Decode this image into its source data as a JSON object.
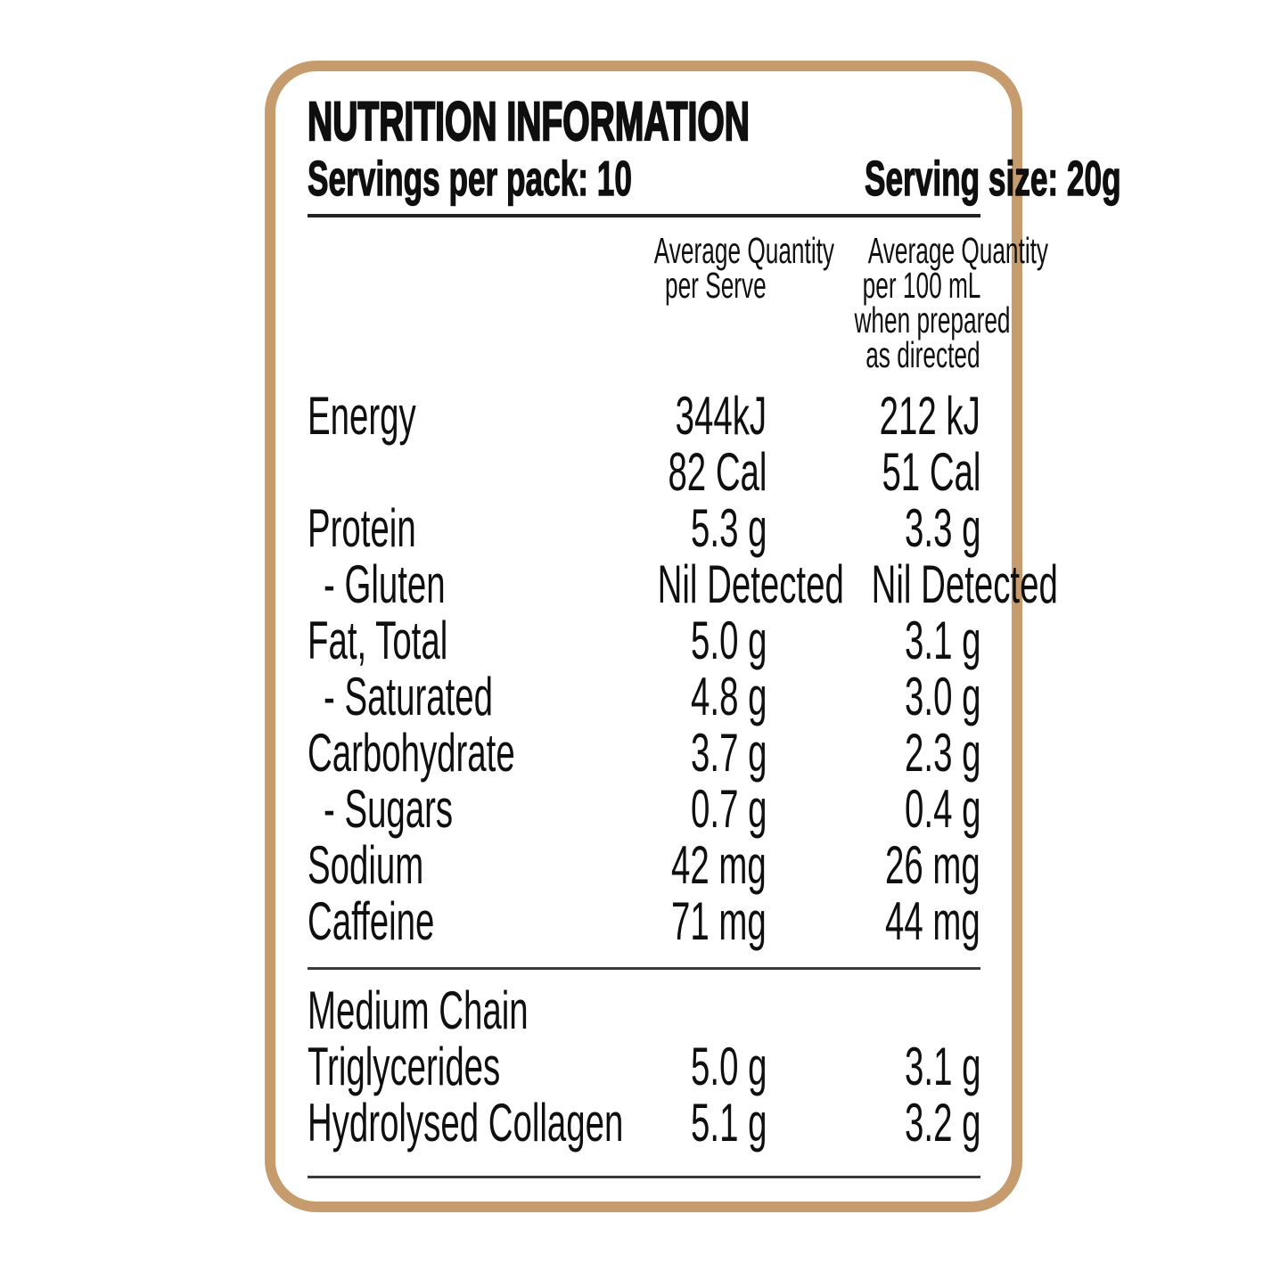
{
  "panel": {
    "title": "NUTRITION INFORMATION",
    "servings_per_pack": "Servings per pack: 10",
    "serving_size": "Serving size: 20g",
    "columns": {
      "per_serve_lines": [
        "Average Quantity",
        "per Serve"
      ],
      "per_100ml_lines": [
        "Average Quantity",
        "per 100 mL",
        "when prepared",
        "as directed"
      ]
    },
    "rows": [
      {
        "label": "Energy",
        "serve": "344kJ",
        "per100": "212 kJ",
        "indent": false
      },
      {
        "label": "",
        "serve": "82 Cal",
        "per100": "51 Cal",
        "indent": false
      },
      {
        "label": "Protein",
        "serve": "5.3 g",
        "per100": "3.3 g",
        "indent": false
      },
      {
        "label": "- Gluten",
        "serve": "Nil Detected",
        "per100": "Nil Detected",
        "indent": true
      },
      {
        "label": "Fat, Total",
        "serve": "5.0 g",
        "per100": "3.1 g",
        "indent": false
      },
      {
        "label": "- Saturated",
        "serve": "4.8 g",
        "per100": "3.0 g",
        "indent": true
      },
      {
        "label": "Carbohydrate",
        "serve": "3.7 g",
        "per100": "2.3 g",
        "indent": false
      },
      {
        "label": "- Sugars",
        "serve": "0.7 g",
        "per100": "0.4 g",
        "indent": true
      },
      {
        "label": "Sodium",
        "serve": "42 mg",
        "per100": "26 mg",
        "indent": false
      },
      {
        "label": "Caffeine",
        "serve": "71 mg",
        "per100": "44 mg",
        "indent": false
      }
    ],
    "supplement_rows": [
      {
        "label": "Medium Chain",
        "serve": "",
        "per100": "",
        "indent": false
      },
      {
        "label": "Triglycerides",
        "serve": "5.0 g",
        "per100": "3.1 g",
        "indent": false
      },
      {
        "label": "Hydrolysed Collagen",
        "serve": "5.1 g",
        "per100": "3.2 g",
        "indent": false
      }
    ]
  },
  "colors": {
    "border": "#C69C6E",
    "rule": "#3A3A3A",
    "text": "#0F0F0F"
  }
}
